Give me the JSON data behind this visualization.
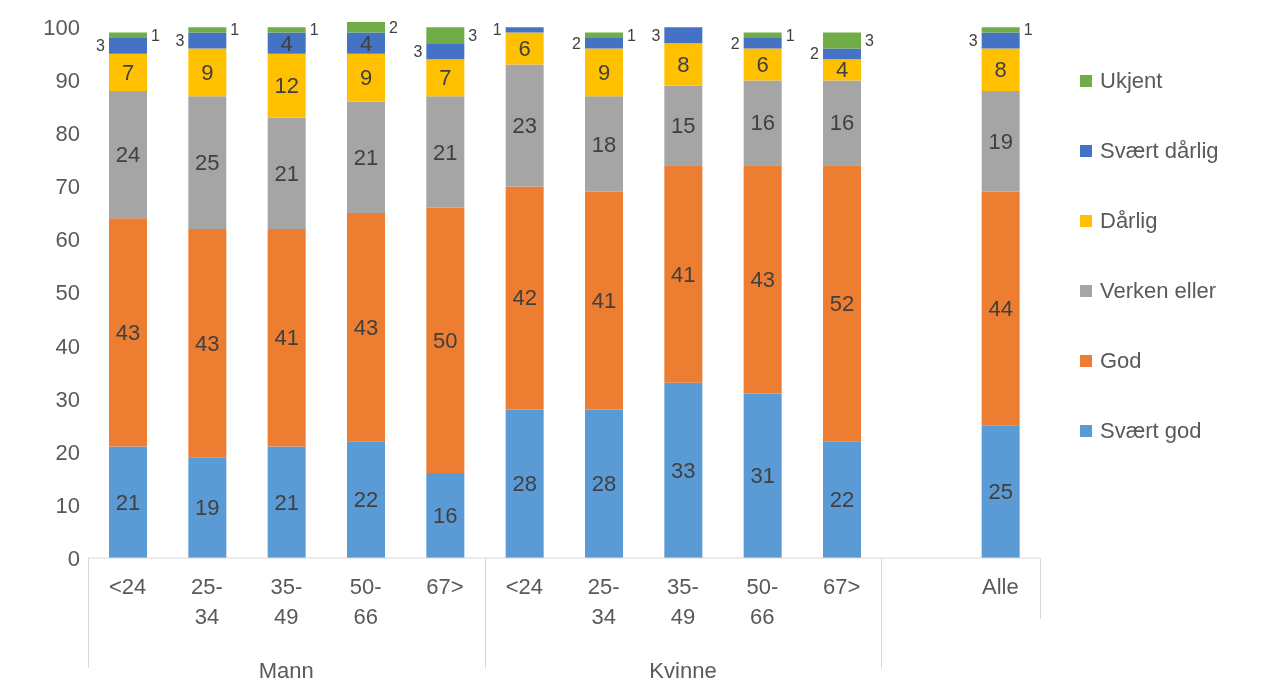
{
  "chart_data": {
    "type": "bar",
    "stacked": true,
    "categories": [
      "<24",
      "25-34",
      "35-49",
      "50-66",
      "67>",
      "<24",
      "25-34",
      "35-49",
      "50-66",
      "67>",
      null,
      "Alle"
    ],
    "series": [
      {
        "name": "Svært god",
        "color": "#5b9bd5",
        "values": [
          21,
          19,
          21,
          22,
          16,
          28,
          28,
          33,
          31,
          22,
          null,
          25
        ]
      },
      {
        "name": "God",
        "color": "#ed7d31",
        "values": [
          43,
          43,
          41,
          43,
          50,
          42,
          41,
          41,
          43,
          52,
          null,
          44
        ]
      },
      {
        "name": "Verken eller",
        "color": "#a5a5a5",
        "values": [
          24,
          25,
          21,
          21,
          21,
          23,
          18,
          15,
          16,
          16,
          null,
          19
        ]
      },
      {
        "name": "Dårlig",
        "color": "#ffc000",
        "values": [
          7,
          9,
          12,
          9,
          7,
          6,
          9,
          8,
          6,
          4,
          null,
          8
        ]
      },
      {
        "name": "Svært dårlig",
        "color": "#4472c4",
        "values": [
          3,
          3,
          4,
          4,
          3,
          1,
          2,
          3,
          2,
          2,
          null,
          3
        ]
      },
      {
        "name": "Ukjent",
        "color": "#70ad47",
        "values": [
          1,
          1,
          1,
          2,
          3,
          null,
          1,
          null,
          1,
          3,
          null,
          1
        ]
      }
    ],
    "ylim": [
      0,
      101
    ],
    "yticks": [
      0,
      10,
      20,
      30,
      40,
      50,
      60,
      70,
      80,
      90,
      100
    ],
    "grid": false,
    "legend": "right",
    "data_labels": true,
    "annotations": [
      "Mann",
      "Kvinne"
    ]
  }
}
